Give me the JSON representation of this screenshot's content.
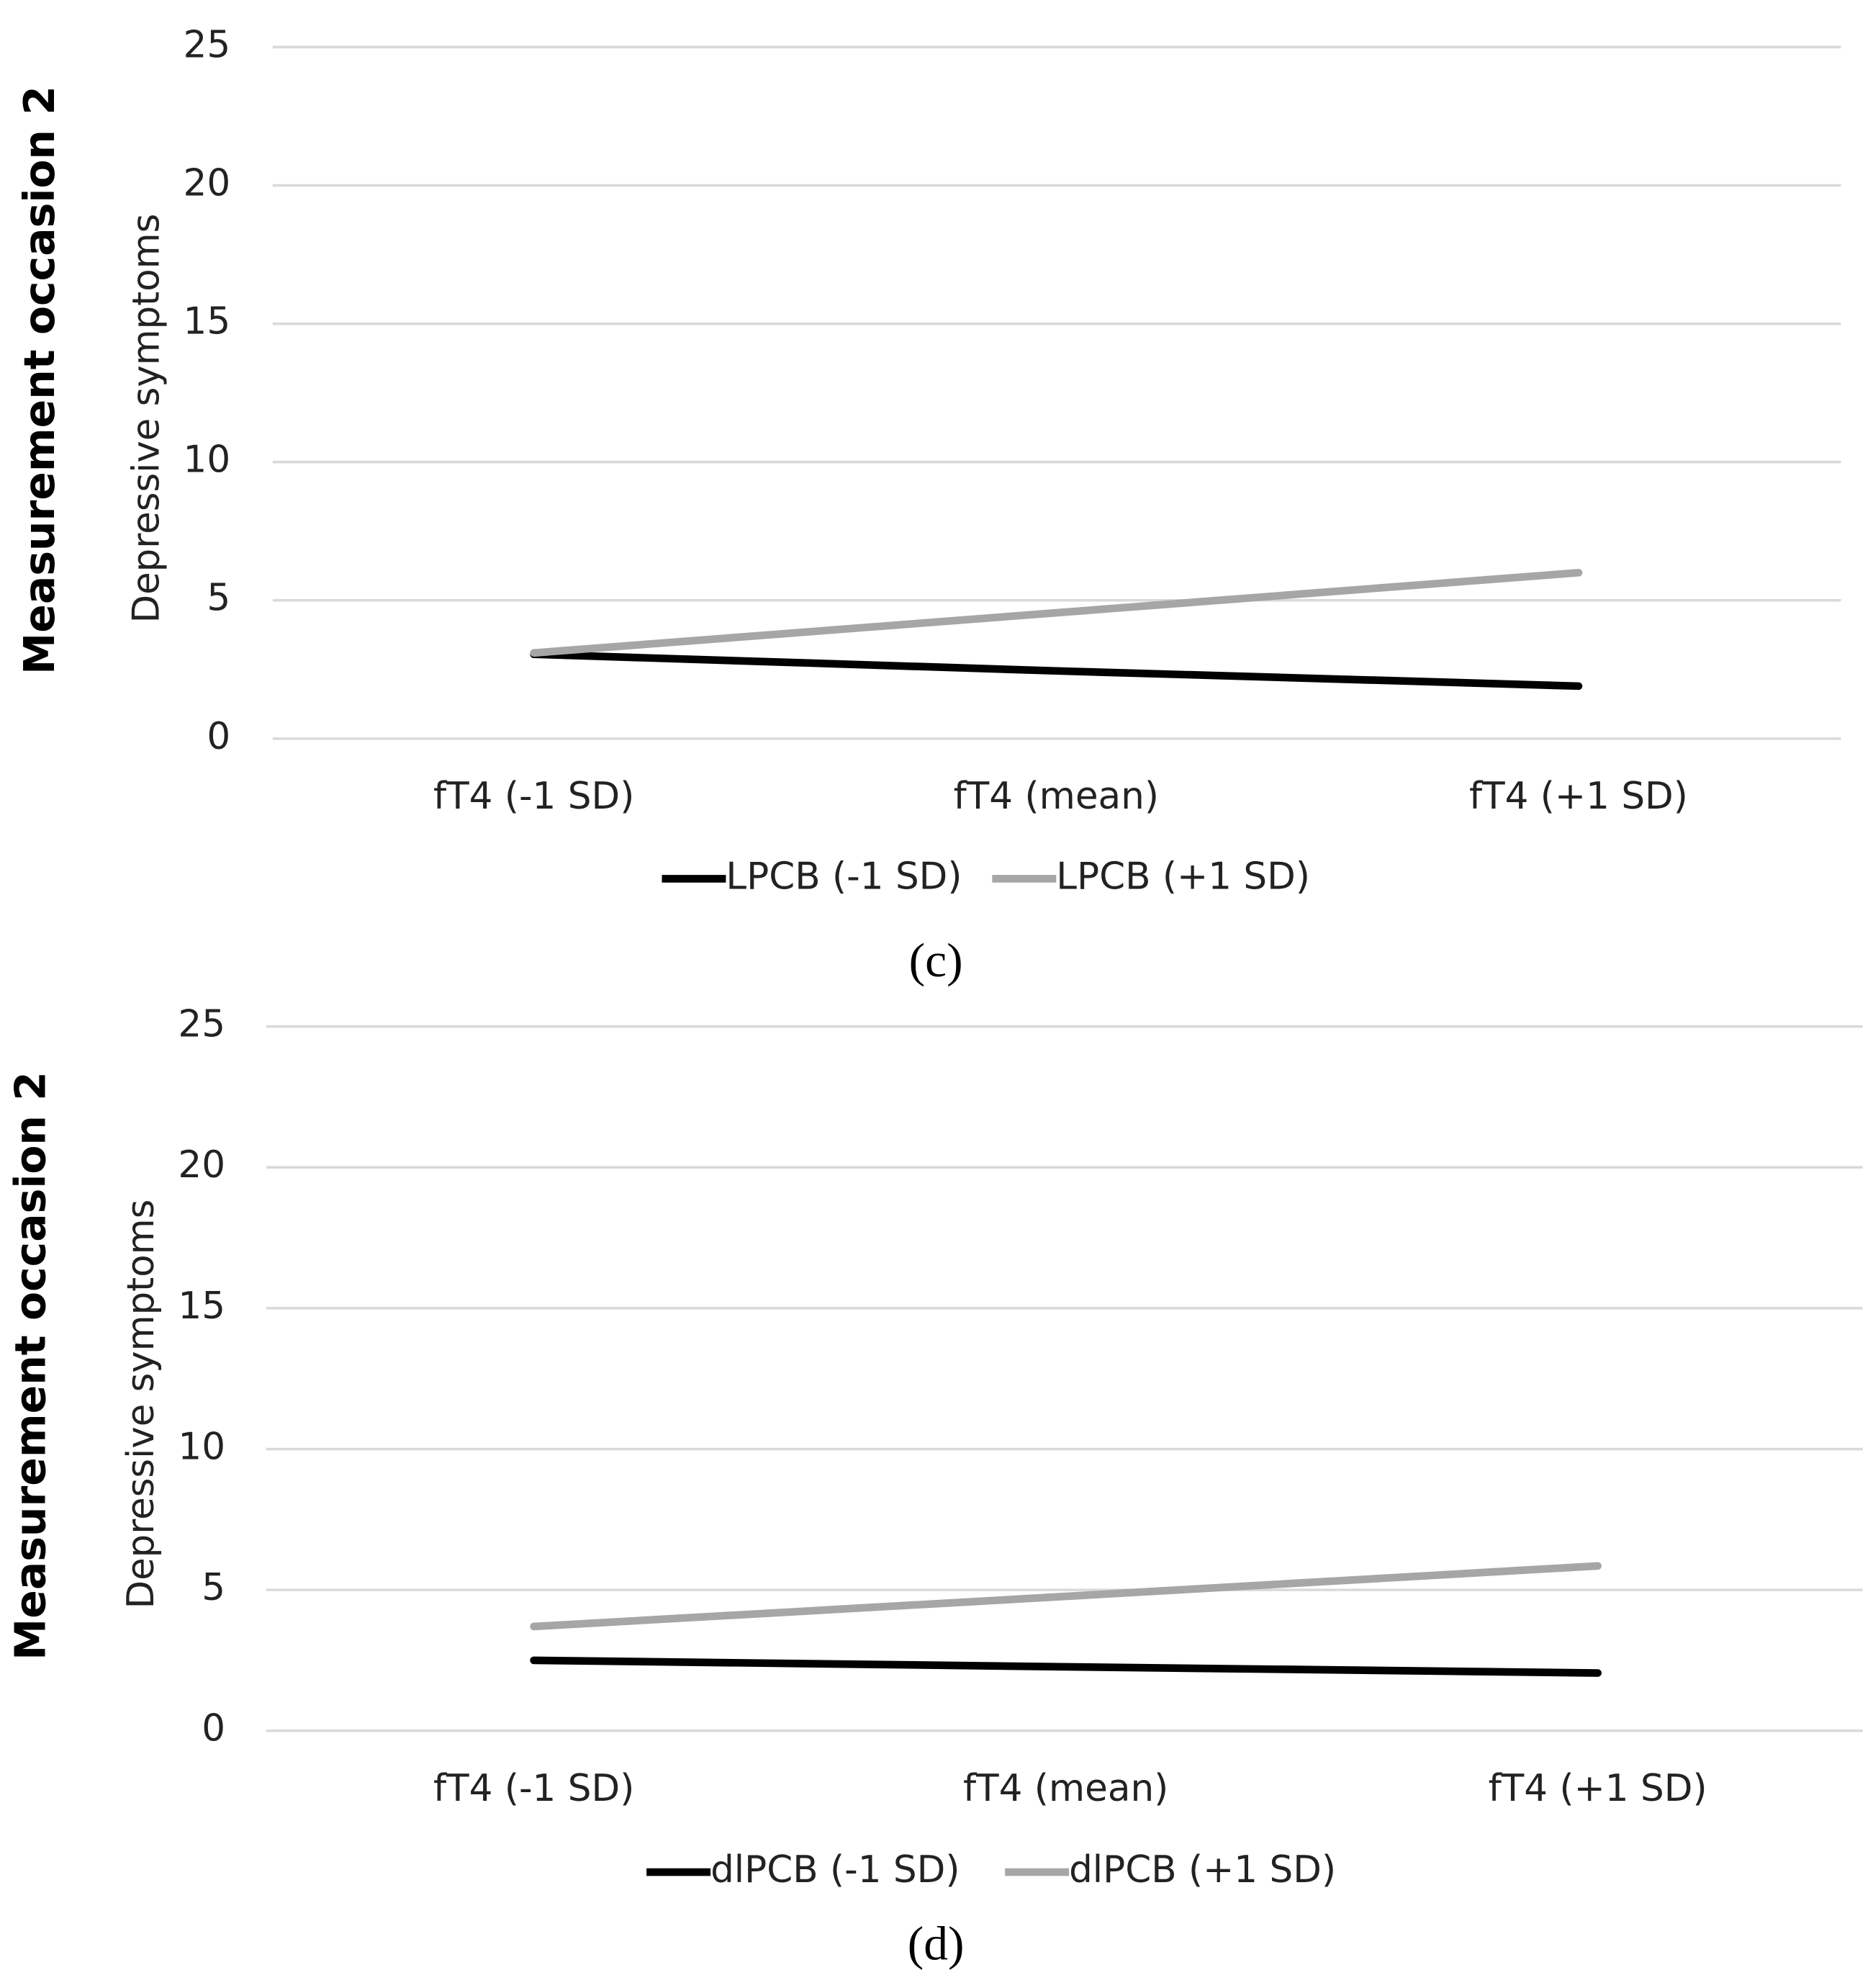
{
  "chart_data": [
    {
      "type": "line",
      "side_label": "Measurement occasion 2",
      "ylabel": "Depressive symptoms",
      "caption": "(c)",
      "categories": [
        "fT4 (-1 SD)",
        "fT4 (mean)",
        "fT4 (+1 SD)"
      ],
      "series": [
        {
          "name": "LPCB (-1 SD)",
          "color": "#000000",
          "values": [
            3.05,
            2.45,
            1.9
          ]
        },
        {
          "name": "LPCB (+1 SD)",
          "color": "#a6a6a6",
          "values": [
            3.1,
            4.55,
            6.0
          ]
        }
      ],
      "ylim": [
        0,
        25
      ],
      "yticks": [
        0,
        5,
        10,
        15,
        20,
        25
      ],
      "grid": true,
      "legend": "bottom"
    },
    {
      "type": "line",
      "side_label": "Measurement occasion 2",
      "ylabel": "Depressive symptoms",
      "caption": "(d)",
      "categories": [
        "fT4 (-1 SD)",
        "fT4 (mean)",
        "fT4 (+1 SD)"
      ],
      "series": [
        {
          "name": "dlPCB (-1 SD)",
          "color": "#000000",
          "values": [
            2.5,
            2.27,
            2.05
          ]
        },
        {
          "name": "dlPCB (+1 SD)",
          "color": "#a6a6a6",
          "values": [
            3.7,
            4.77,
            5.85
          ]
        }
      ],
      "ylim": [
        0,
        25
      ],
      "yticks": [
        0,
        5,
        10,
        15,
        20,
        25
      ],
      "grid": true,
      "legend": "bottom"
    }
  ]
}
